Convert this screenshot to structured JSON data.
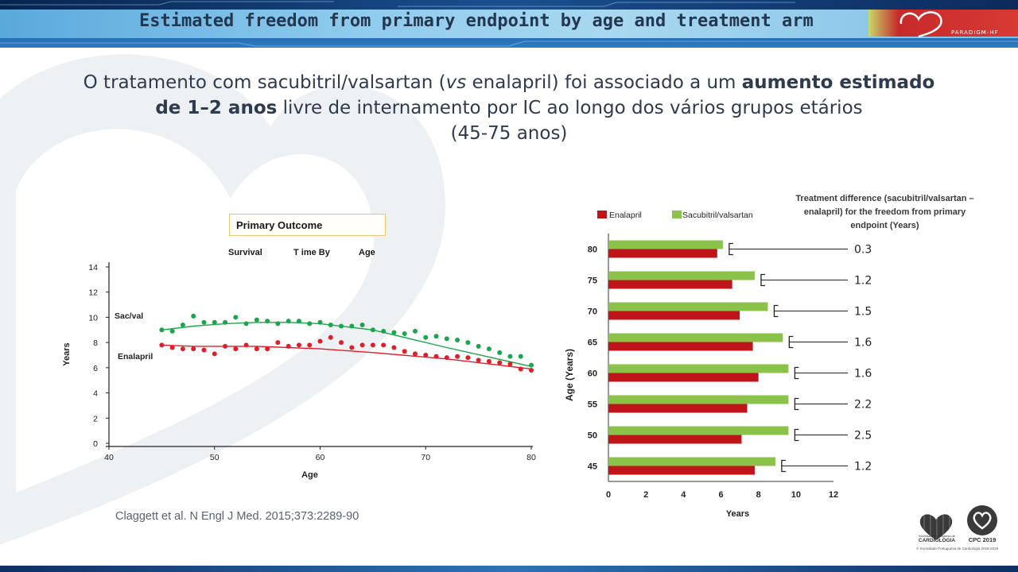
{
  "header": {
    "title": "Estimated freedom from primary endpoint by age and treatment arm",
    "brand_text": "PARADIGM-HF"
  },
  "headline": {
    "line1_part1": "O tratamento com sacubitril/valsartan (",
    "line1_italic": "vs",
    "line1_part2": " enalapril) foi associado a um ",
    "line1_bold": "aumento estimado",
    "line2_bold": "de 1–2 anos",
    "line2_rest": " livre de internamento por IC ao longo dos vários grupos etários",
    "line3": "(45-75 anos)"
  },
  "left_chart_text": {
    "box_title": "Primary Outcome",
    "sub_word1": "Survival",
    "sub_word2": "T ime By",
    "sub_word3": "Age"
  },
  "right_chart_text": {
    "diff_header_line1": "Treatment difference (sacubitril/valsartan –",
    "diff_header_line2": "enalapril) for the freedom from primary",
    "diff_header_line3": "endpoint (Years)"
  },
  "citation": "Claggett et al. N Engl J Med. 2015;373:2289-90",
  "logos": {
    "spc_name": "CARDIOLOGIA",
    "spc_small": "Sociedade Portuguesa de",
    "cpc_name": "CPC 2019",
    "copyright": "© Sociedade Portuguesa de Cardiologia 2018-2019"
  },
  "colors": {
    "green": "#8bc34a",
    "red": "#c0141b",
    "green_dots": "#1aa64a",
    "red_dots": "#e01e2a"
  },
  "chart_data": [
    {
      "type": "scatter",
      "title": "",
      "xlabel": "Age",
      "ylabel": "Years",
      "xlim": [
        40,
        80
      ],
      "ylim": [
        0,
        14
      ],
      "x_ticks": [
        40,
        50,
        60,
        70,
        80
      ],
      "y_ticks": [
        0,
        2,
        4,
        6,
        8,
        10,
        12,
        14
      ],
      "series": [
        {
          "name": "Sac/val",
          "x": [
            45,
            46,
            47,
            48,
            49,
            50,
            51,
            52,
            53,
            54,
            55,
            56,
            57,
            58,
            59,
            60,
            61,
            62,
            63,
            64,
            65,
            66,
            67,
            68,
            69,
            70,
            71,
            72,
            73,
            74,
            75,
            76,
            77,
            78,
            79,
            80
          ],
          "y": [
            9.0,
            8.9,
            9.4,
            10.1,
            9.6,
            9.6,
            9.6,
            10.0,
            9.5,
            9.8,
            9.7,
            9.5,
            9.7,
            9.7,
            9.5,
            9.6,
            9.4,
            9.3,
            9.3,
            9.4,
            9.0,
            8.9,
            8.8,
            8.7,
            8.9,
            8.4,
            8.5,
            8.3,
            8.2,
            8.0,
            7.7,
            7.5,
            7.2,
            6.9,
            6.9,
            6.2
          ],
          "fit": [
            9.0,
            9.3,
            9.5,
            9.6,
            9.6,
            9.5,
            9.0,
            7.6,
            6.1
          ]
        },
        {
          "name": "Enalapril",
          "x": [
            45,
            46,
            47,
            48,
            49,
            50,
            51,
            52,
            53,
            54,
            55,
            56,
            57,
            58,
            59,
            60,
            61,
            62,
            63,
            64,
            65,
            66,
            67,
            68,
            69,
            70,
            71,
            72,
            73,
            74,
            75,
            76,
            77,
            78,
            79,
            80
          ],
          "y": [
            7.8,
            7.6,
            7.5,
            7.5,
            7.4,
            7.1,
            7.7,
            7.5,
            7.8,
            7.5,
            7.5,
            8.0,
            7.7,
            7.8,
            7.8,
            8.1,
            8.4,
            8.0,
            7.6,
            7.8,
            7.8,
            7.8,
            7.6,
            7.3,
            7.1,
            7.0,
            6.9,
            6.8,
            6.9,
            6.8,
            6.6,
            6.5,
            6.4,
            6.3,
            5.9,
            5.8
          ],
          "fit": [
            7.8,
            7.7,
            7.7,
            7.7,
            7.6,
            7.5,
            7.2,
            6.7,
            5.9
          ]
        }
      ],
      "fit_x": [
        45,
        48,
        51,
        54,
        57,
        60,
        65,
        72,
        80
      ]
    },
    {
      "type": "bar",
      "orientation": "horizontal",
      "categories": [
        "80",
        "75",
        "70",
        "65",
        "60",
        "55",
        "50",
        "45"
      ],
      "series": [
        {
          "name": "Sacubitril/valsartan",
          "values": [
            6.1,
            7.8,
            8.5,
            9.3,
            9.6,
            9.6,
            9.6,
            8.9
          ]
        },
        {
          "name": "Enalapril",
          "values": [
            5.8,
            6.6,
            7.0,
            7.7,
            8.0,
            7.4,
            7.1,
            7.8
          ]
        }
      ],
      "differences": [
        "0.3",
        "1.2",
        "1.5",
        "1.6",
        "1.6",
        "2.2",
        "2.5",
        "1.2"
      ],
      "xlabel": "Years",
      "ylabel": "Age (Years)",
      "xlim": [
        0,
        12
      ],
      "x_ticks": [
        0,
        2,
        4,
        6,
        8,
        10,
        12
      ],
      "legend": "top-left"
    }
  ]
}
